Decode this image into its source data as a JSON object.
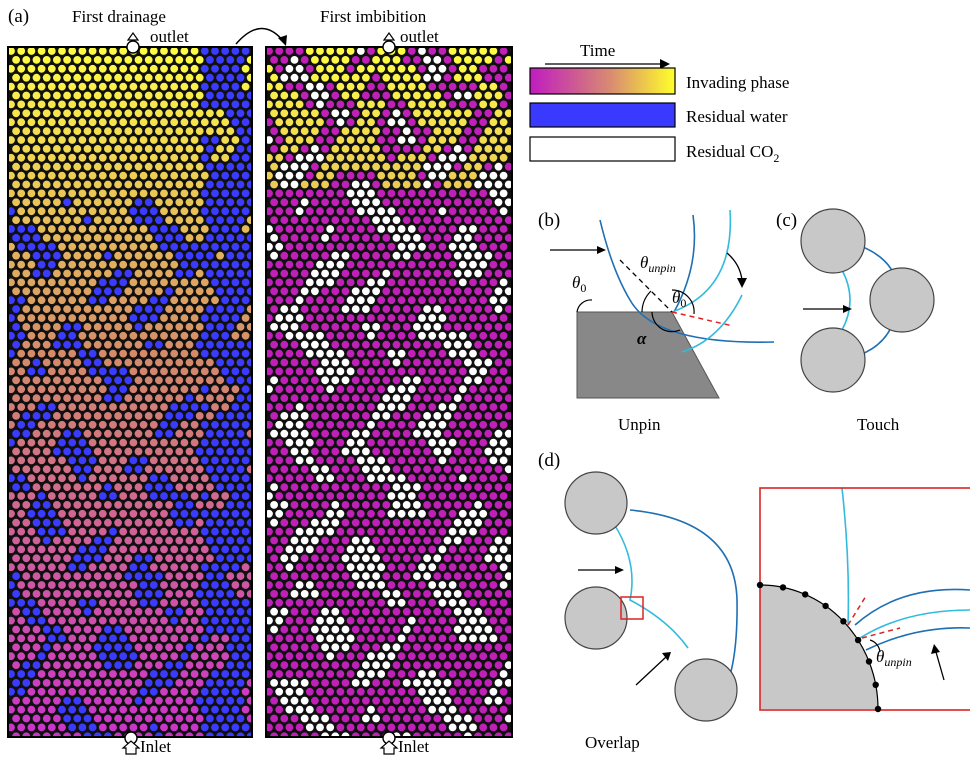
{
  "panel_a": {
    "label": "(a)",
    "left": {
      "title": "First drainage",
      "outlet": "outlet",
      "inlet": "Inlet"
    },
    "right": {
      "title": "First imbibition",
      "outlet": "outlet",
      "inlet": "Inlet"
    }
  },
  "legend": {
    "time_label": "Time",
    "items": [
      {
        "label": "Invading phase",
        "kind": "gradient"
      },
      {
        "label": "Residual water",
        "kind": "solid"
      },
      {
        "label": "Residual CO",
        "subscript": "2",
        "kind": "outline"
      }
    ]
  },
  "panel_b": {
    "label": "(b)",
    "caption": "Unpin",
    "theta0": "θ",
    "theta0_sub": "0",
    "theta_unpin": "θ",
    "theta_unpin_sub": "unpin",
    "alpha": "α"
  },
  "panel_c": {
    "label": "(c)",
    "caption": "Touch"
  },
  "panel_d": {
    "label": "(d)",
    "caption": "Overlap",
    "theta_unpin": "θ",
    "theta_unpin_sub": "unpin"
  },
  "colors": {
    "pore_background": "#111111",
    "residual_water": "#3b3bff",
    "residual_co2": "#ffffff",
    "invading_early": "#ffff44",
    "invading_mid": "#d48a6a",
    "invading_late": "#cc33cc",
    "imbibition_invading": "#c020b8",
    "grain": "#c8c8c8",
    "interface_dark": "#1f6fb4",
    "interface_light": "#33bbdd",
    "zoom_box": "#dd2222"
  }
}
